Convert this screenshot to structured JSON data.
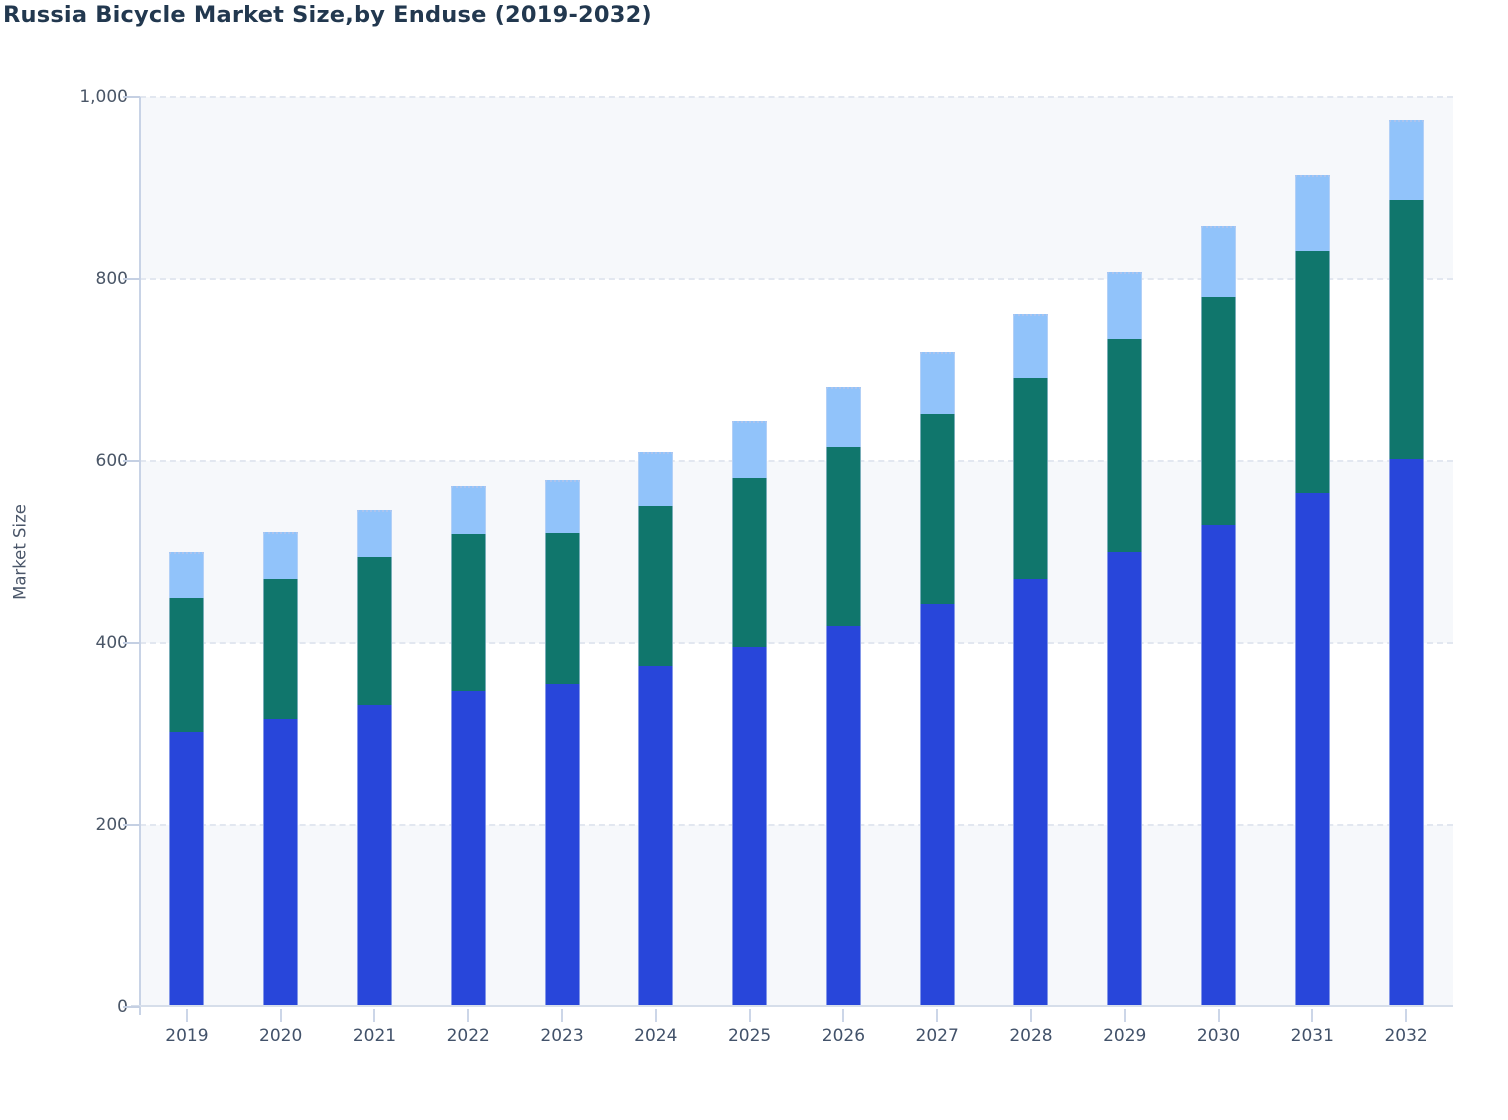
{
  "title": "Russia Bicycle Market Size,by Enduse (2019-2032)",
  "chart_data": {
    "type": "bar",
    "stacked": true,
    "title": "Russia Bicycle Market Size,by Enduse (2019-2032)",
    "xlabel": "",
    "ylabel": "Market Size",
    "ylim": [
      0,
      1000
    ],
    "grid": "horizontal-dashed",
    "legend": "none",
    "background_bands": [
      [
        0,
        200
      ],
      [
        400,
        600
      ],
      [
        800,
        1000
      ]
    ],
    "yticks": [
      {
        "value": 0,
        "label": "0"
      },
      {
        "value": 200,
        "label": "200"
      },
      {
        "value": 400,
        "label": "400"
      },
      {
        "value": 600,
        "label": "600"
      },
      {
        "value": 800,
        "label": "800"
      },
      {
        "value": 1000,
        "label": "1,000"
      }
    ],
    "categories": [
      "2019",
      "2020",
      "2021",
      "2022",
      "2023",
      "2024",
      "2025",
      "2026",
      "2027",
      "2028",
      "2029",
      "2030",
      "2031",
      "2032"
    ],
    "series": [
      {
        "name": "blue-segment",
        "color": "#2846DA",
        "values": [
          302,
          316,
          332,
          347,
          355,
          375,
          396,
          419,
          443,
          470,
          500,
          530,
          565,
          602
        ]
      },
      {
        "name": "teal-segment",
        "color": "#10766C",
        "values": [
          148,
          154,
          163,
          173,
          166,
          176,
          185,
          196,
          209,
          221,
          234,
          250,
          266,
          285
        ]
      },
      {
        "name": "light-blue-segment",
        "color": "#91C3FA",
        "values": [
          50,
          52,
          51,
          53,
          58,
          59,
          63,
          66,
          68,
          71,
          74,
          78,
          83,
          88
        ]
      }
    ],
    "stack_totals": [
      500,
      522,
      546,
      573,
      579,
      610,
      644,
      681,
      720,
      762,
      808,
      858,
      914,
      975
    ]
  },
  "colors": {
    "band": "#f6f8fb",
    "gridline": "#e2e7f0",
    "x_axis_line": "#d6deea",
    "y_axis_line": "#c8d3e6",
    "title_text": "#22384f",
    "tick_text": "#4a5667"
  }
}
